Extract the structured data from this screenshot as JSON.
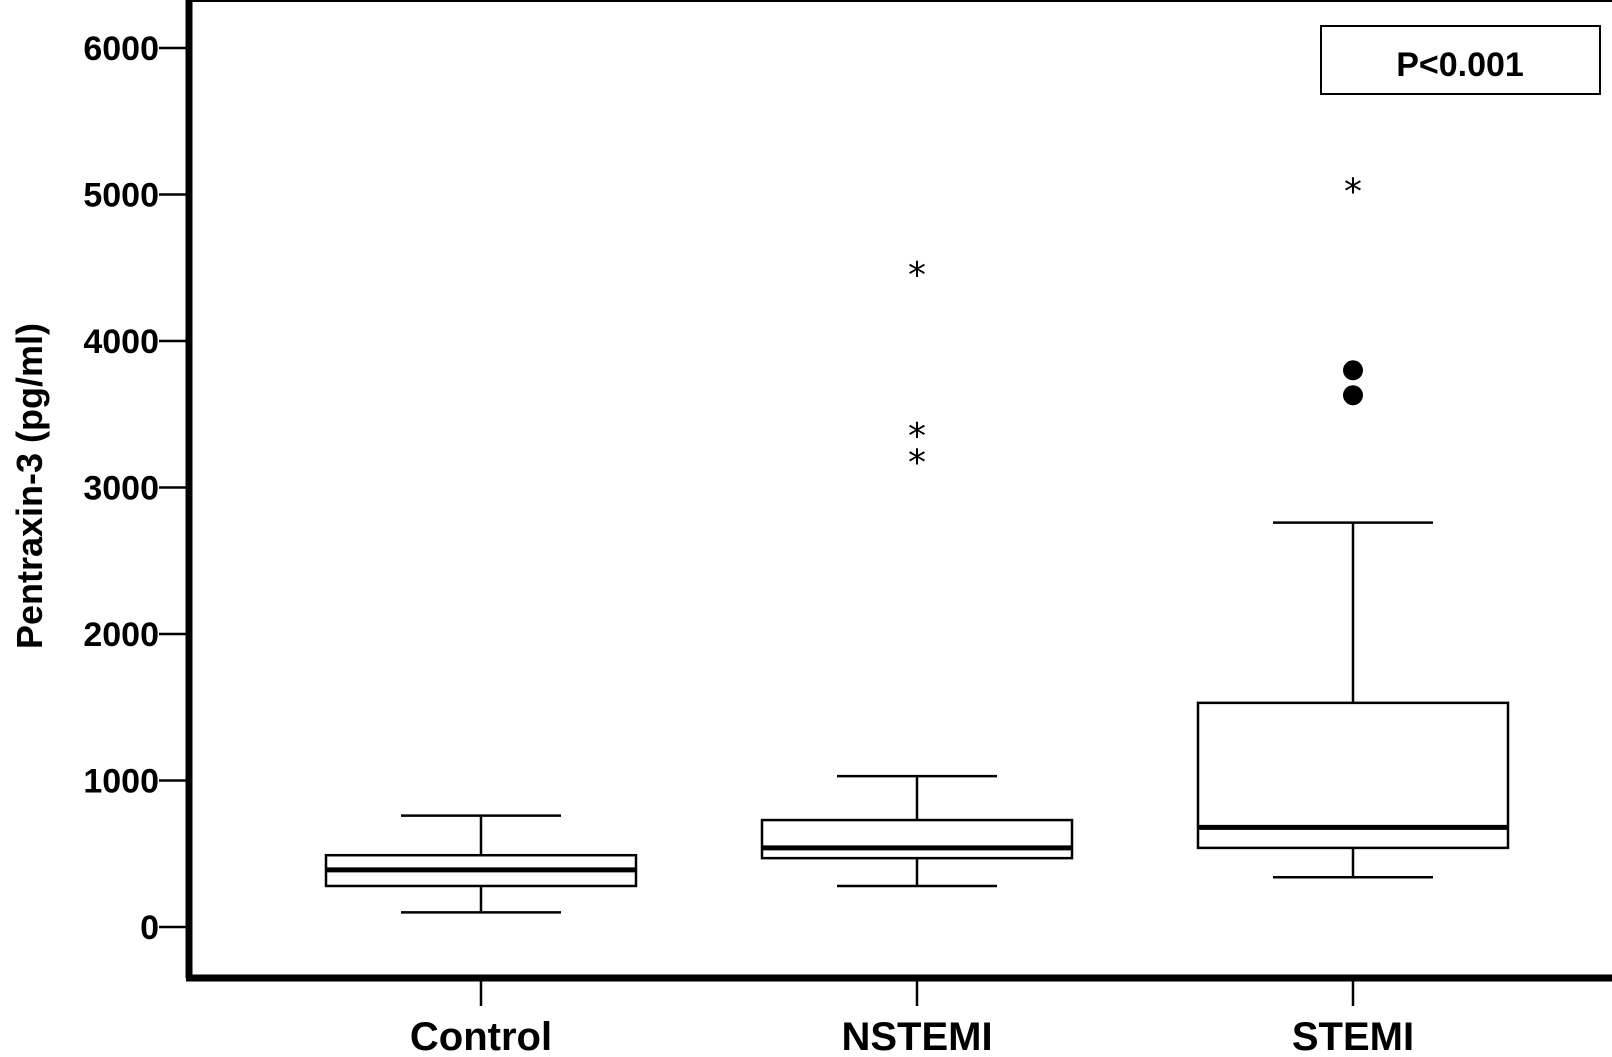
{
  "chart_data": {
    "type": "box",
    "ylabel": "Pentraxin-3 (pg/ml)",
    "xlabel": "",
    "ylim": [
      0,
      6000
    ],
    "yticks": [
      0,
      1000,
      2000,
      3000,
      4000,
      5000,
      6000
    ],
    "categories": [
      "Control",
      "NSTEMI",
      "STEMI"
    ],
    "boxes": [
      {
        "category": "Control",
        "whisker_low": 100,
        "q1": 280,
        "median": 390,
        "q3": 490,
        "whisker_high": 760,
        "outliers": [],
        "extremes": []
      },
      {
        "category": "NSTEMI",
        "whisker_low": 280,
        "q1": 470,
        "median": 540,
        "q3": 730,
        "whisker_high": 1030,
        "outliers": [],
        "extremes": [
          3240,
          3420,
          4520
        ]
      },
      {
        "category": "STEMI",
        "whisker_low": 340,
        "q1": 540,
        "median": 680,
        "q3": 1530,
        "whisker_high": 2760,
        "outliers": [
          3630,
          3800
        ],
        "extremes": [
          5090
        ]
      }
    ],
    "annotation": "P<0.001",
    "annotation_position": "top-right"
  }
}
